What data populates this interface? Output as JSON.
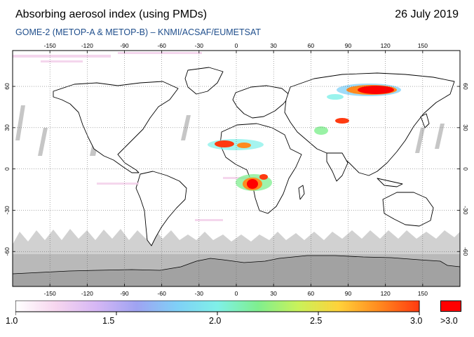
{
  "header": {
    "title": "Absorbing aerosol index (using PMDs)",
    "date": "26 July 2019",
    "subtitle": "GOME-2 (METOP-A & METOP-B) –  KNMI/ACSAF/EUMETSAT"
  },
  "map": {
    "lon_ticks": [
      "-150",
      "-120",
      "-90",
      "-60",
      "-30",
      "0",
      "30",
      "60",
      "90",
      "120",
      "150"
    ],
    "lat_ticks": [
      "60",
      "30",
      "0",
      "-30",
      "-60"
    ],
    "colors": {
      "ocean": "#ffffff",
      "coast": "#000000",
      "grid": "#555555",
      "no_data": "#c9c9c9",
      "polar_dark": "#a8a8a8",
      "aerosol_high": "#ff0000"
    }
  },
  "colorbar": {
    "tick_labels": [
      "1.0",
      "1.5",
      "2.0",
      "2.5",
      "3.0"
    ],
    "over_label": ">3.0",
    "stops": [
      "#ffffff",
      "#f7d6ef",
      "#d6b7f5",
      "#9fa3f2",
      "#7fd0f7",
      "#7ff0e8",
      "#7fef8f",
      "#c9f25a",
      "#ffd23a",
      "#ff8a1f",
      "#ff3a10"
    ],
    "over_color": "#ff0000"
  }
}
